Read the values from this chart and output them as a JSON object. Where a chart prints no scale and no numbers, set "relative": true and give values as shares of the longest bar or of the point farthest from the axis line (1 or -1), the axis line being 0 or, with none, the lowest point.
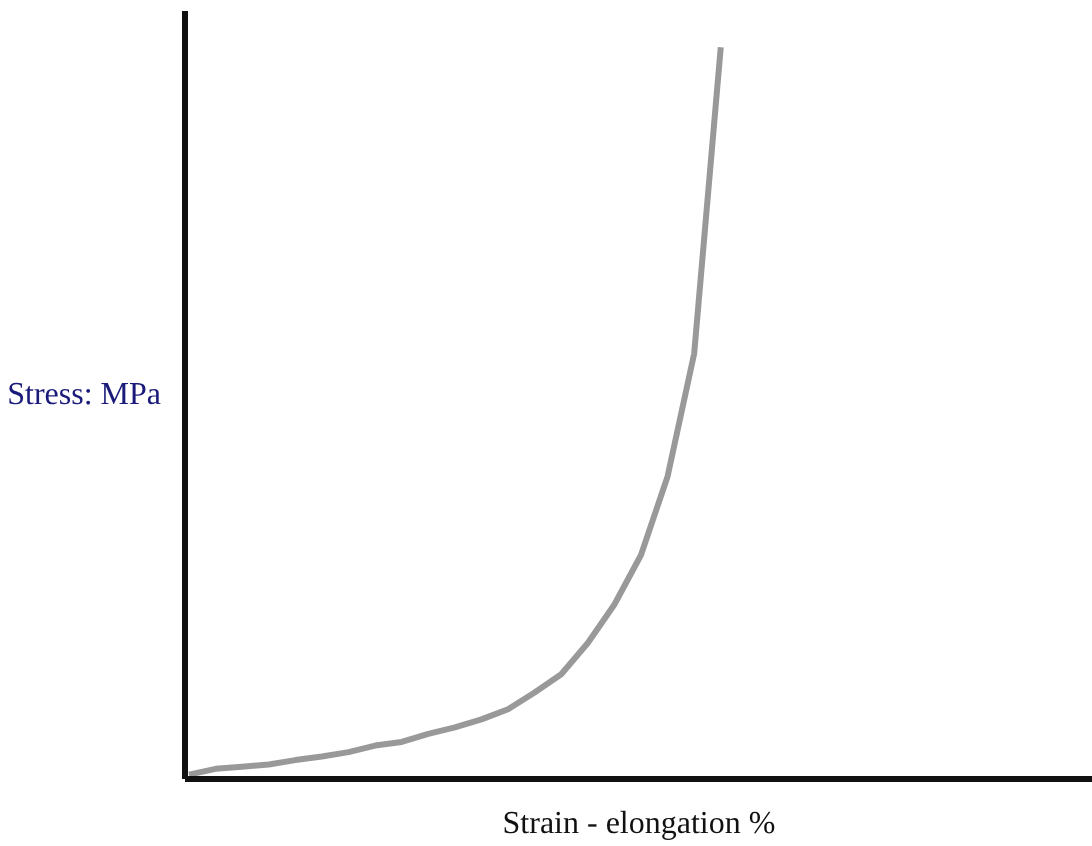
{
  "chart_data": {
    "type": "line",
    "relative": true,
    "xlabel": "Strain - elongation %",
    "ylabel": "Stress: MPa",
    "categories": [
      null,
      null,
      null,
      null,
      null,
      null,
      null,
      null,
      null,
      null,
      null,
      null,
      null,
      null,
      null,
      null,
      null,
      null,
      null,
      null,
      null,
      null,
      null,
      null,
      null,
      null,
      null,
      null,
      null,
      null,
      null,
      null,
      null,
      null,
      null
    ],
    "series": [
      {
        "color": "#999999",
        "values": [
          0,
          0.008,
          0.011,
          0.014,
          0.02,
          0.025,
          0.031,
          0.04,
          0.045,
          0.056,
          0.065,
          0.076,
          0.09,
          0.113,
          0.138,
          0.181,
          0.234,
          0.302,
          0.41,
          0.579,
          1,
          null,
          null,
          null,
          null,
          null,
          null,
          null,
          null,
          null,
          null,
          null,
          null,
          null,
          null
        ]
      }
    ],
    "marker": "none",
    "line_style": "solid"
  }
}
